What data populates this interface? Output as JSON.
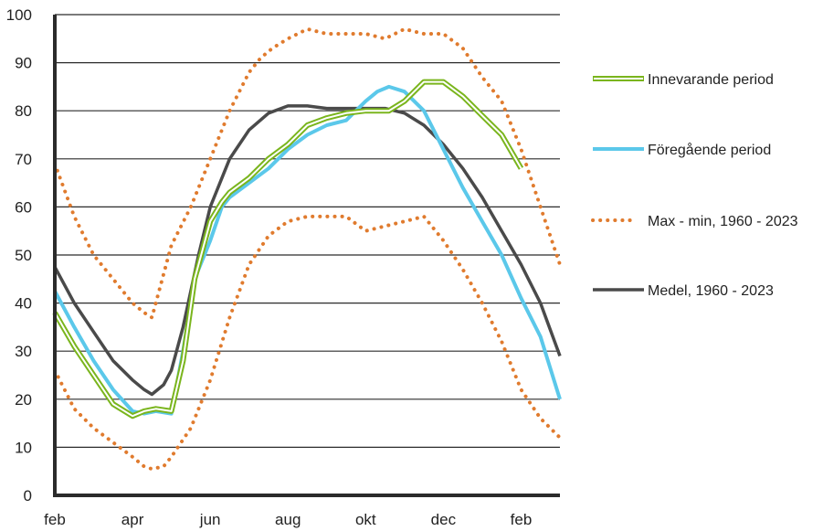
{
  "chart_data": {
    "type": "line",
    "title": "",
    "xlabel": "",
    "ylabel": "",
    "ylim": [
      0,
      100
    ],
    "yticks": [
      "0",
      "10",
      "20",
      "30",
      "40",
      "50",
      "60",
      "70",
      "80",
      "90",
      "100"
    ],
    "xticks": [
      "feb",
      "apr",
      "jun",
      "aug",
      "okt",
      "dec",
      "feb"
    ],
    "x_range_months": [
      0,
      13
    ],
    "grid": "horizontal",
    "legend_position": "right",
    "series": [
      {
        "name": "Max - min, 1960 - 2023",
        "style": "dotted",
        "color": "#e07b2e",
        "lines": [
          [
            [
              0,
              69
            ],
            [
              0.5,
              58
            ],
            [
              1,
              50
            ],
            [
              1.5,
              45
            ],
            [
              2,
              40
            ],
            [
              2.3,
              38
            ],
            [
              2.5,
              37
            ],
            [
              2.8,
              46
            ],
            [
              3,
              52
            ],
            [
              3.5,
              60
            ],
            [
              4,
              70
            ],
            [
              4.5,
              80
            ],
            [
              5,
              88
            ],
            [
              5.3,
              91
            ],
            [
              5.6,
              93
            ],
            [
              6,
              95
            ],
            [
              6.5,
              97
            ],
            [
              7,
              96
            ],
            [
              7.5,
              96
            ],
            [
              8,
              96
            ],
            [
              8.5,
              95
            ],
            [
              9,
              97
            ],
            [
              9.5,
              96
            ],
            [
              10,
              96
            ],
            [
              10.5,
              93
            ],
            [
              11,
              87
            ],
            [
              11.5,
              82
            ],
            [
              12,
              72
            ],
            [
              12.5,
              60
            ],
            [
              13,
              48
            ]
          ],
          [
            [
              0,
              26
            ],
            [
              0.5,
              18
            ],
            [
              1,
              14
            ],
            [
              1.5,
              11
            ],
            [
              2,
              8
            ],
            [
              2.3,
              6
            ],
            [
              2.5,
              5.5
            ],
            [
              2.8,
              6
            ],
            [
              3,
              8
            ],
            [
              3.5,
              14
            ],
            [
              4,
              24
            ],
            [
              4.5,
              37
            ],
            [
              5,
              48
            ],
            [
              5.5,
              54
            ],
            [
              6,
              57
            ],
            [
              6.5,
              58
            ],
            [
              7,
              58
            ],
            [
              7.5,
              58
            ],
            [
              8,
              55
            ],
            [
              8.5,
              56
            ],
            [
              9,
              57
            ],
            [
              9.5,
              58
            ],
            [
              10,
              53
            ],
            [
              10.5,
              47
            ],
            [
              11,
              40
            ],
            [
              11.5,
              32
            ],
            [
              12,
              22
            ],
            [
              12.5,
              16
            ],
            [
              13,
              12
            ]
          ]
        ]
      },
      {
        "name": "Medel, 1960 - 2023",
        "style": "solid",
        "color": "#4a4a4a",
        "points": [
          [
            0,
            47.5
          ],
          [
            0.5,
            40
          ],
          [
            1,
            34
          ],
          [
            1.5,
            28
          ],
          [
            2,
            24
          ],
          [
            2.3,
            22
          ],
          [
            2.5,
            21
          ],
          [
            2.8,
            23
          ],
          [
            3,
            26
          ],
          [
            3.3,
            35
          ],
          [
            3.7,
            50
          ],
          [
            4,
            60
          ],
          [
            4.5,
            70
          ],
          [
            5,
            76
          ],
          [
            5.5,
            79.5
          ],
          [
            6,
            81
          ],
          [
            6.5,
            81
          ],
          [
            7,
            80.5
          ],
          [
            7.5,
            80.5
          ],
          [
            8,
            80.5
          ],
          [
            8.5,
            80.5
          ],
          [
            9,
            79.5
          ],
          [
            9.5,
            77
          ],
          [
            10,
            73
          ],
          [
            10.5,
            68
          ],
          [
            11,
            62
          ],
          [
            11.5,
            55
          ],
          [
            12,
            48
          ],
          [
            12.5,
            40
          ],
          [
            13,
            29
          ]
        ]
      },
      {
        "name": "Föregående period",
        "style": "solid",
        "color": "#5bc8ea",
        "points": [
          [
            0,
            42.5
          ],
          [
            0.5,
            35
          ],
          [
            1,
            28
          ],
          [
            1.5,
            22
          ],
          [
            2,
            17.5
          ],
          [
            2.3,
            17
          ],
          [
            2.6,
            17.5
          ],
          [
            3,
            17
          ],
          [
            3.3,
            30
          ],
          [
            3.6,
            45
          ],
          [
            4,
            53
          ],
          [
            4.3,
            60
          ],
          [
            4.5,
            62
          ],
          [
            5,
            65
          ],
          [
            5.5,
            68
          ],
          [
            6,
            72
          ],
          [
            6.5,
            75
          ],
          [
            7,
            77
          ],
          [
            7.5,
            78
          ],
          [
            8,
            82
          ],
          [
            8.3,
            84
          ],
          [
            8.6,
            85
          ],
          [
            9,
            84
          ],
          [
            9.5,
            80
          ],
          [
            10,
            72
          ],
          [
            10.5,
            64
          ],
          [
            11,
            57
          ],
          [
            11.5,
            50
          ],
          [
            12,
            41
          ],
          [
            12.5,
            33
          ],
          [
            13,
            20
          ]
        ]
      },
      {
        "name": "Innevarande period",
        "style": "double",
        "color": "#7ab51d",
        "points": [
          [
            0,
            38
          ],
          [
            0.5,
            31
          ],
          [
            1,
            25
          ],
          [
            1.5,
            19
          ],
          [
            2,
            16.5
          ],
          [
            2.3,
            17.5
          ],
          [
            2.6,
            18
          ],
          [
            3,
            17.5
          ],
          [
            3.3,
            28
          ],
          [
            3.6,
            45
          ],
          [
            4,
            57
          ],
          [
            4.3,
            61
          ],
          [
            4.5,
            63
          ],
          [
            5,
            66
          ],
          [
            5.5,
            70
          ],
          [
            6,
            73
          ],
          [
            6.5,
            77
          ],
          [
            7,
            78.5
          ],
          [
            7.5,
            79.5
          ],
          [
            8,
            80
          ],
          [
            8.3,
            80
          ],
          [
            8.6,
            80
          ],
          [
            9,
            82
          ],
          [
            9.5,
            86
          ],
          [
            10,
            86
          ],
          [
            10.5,
            83
          ],
          [
            11,
            79
          ],
          [
            11.5,
            75
          ],
          [
            12,
            68
          ]
        ]
      }
    ]
  },
  "legend": [
    {
      "label": "Innevarande period",
      "style": "double",
      "color": "#7ab51d"
    },
    {
      "label": "Föregående period",
      "style": "solid",
      "color": "#5bc8ea"
    },
    {
      "label": "Max - min, 1960 - 2023",
      "style": "dotted",
      "color": "#e07b2e"
    },
    {
      "label": "Medel, 1960 - 2023",
      "style": "solid",
      "color": "#4a4a4a"
    }
  ]
}
